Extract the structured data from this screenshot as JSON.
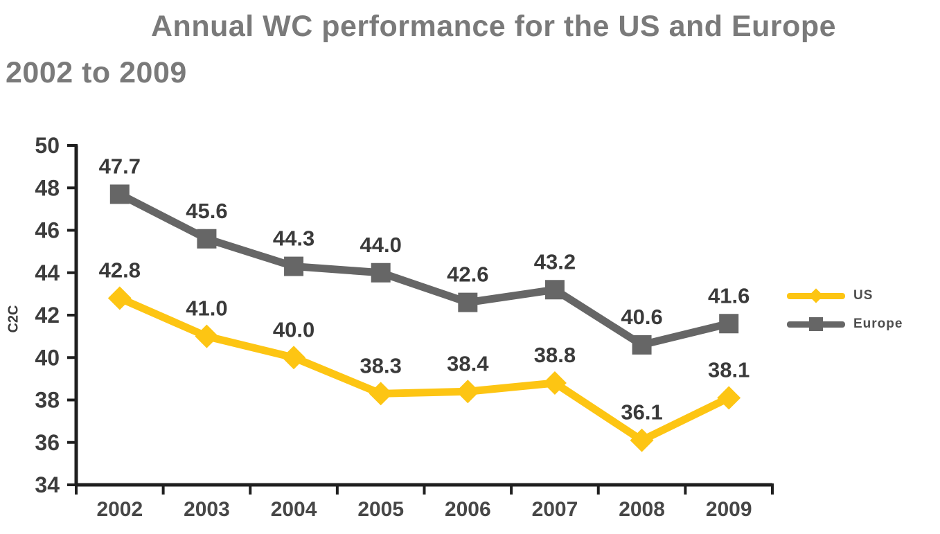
{
  "header": {
    "title_line1": "Annual WC performance for the US and Europe",
    "title_line2": "2002 to 2009"
  },
  "chart_data": {
    "type": "line",
    "title": "Annual WC performance for the US and Europe 2002 to 2009",
    "categories": [
      "2002",
      "2003",
      "2004",
      "2005",
      "2006",
      "2007",
      "2008",
      "2009"
    ],
    "series": [
      {
        "name": "US",
        "color": "#FDC513",
        "marker": "diamond",
        "values": [
          42.8,
          41.0,
          40.0,
          38.3,
          38.4,
          38.8,
          36.1,
          38.1
        ]
      },
      {
        "name": "Europe",
        "color": "#666666",
        "marker": "square",
        "values": [
          47.7,
          45.6,
          44.3,
          44.0,
          42.6,
          43.2,
          40.6,
          41.6
        ]
      }
    ],
    "xlabel": "",
    "ylabel": "C2C",
    "ylim": [
      34,
      50
    ],
    "ytick_step": 2,
    "grid": false,
    "data_labels": true,
    "legend_position": "right"
  },
  "colors": {
    "background": "#ffffff",
    "axis": "#1f1f1f",
    "tick_text": "#3d3d3d",
    "year_text": "#474747",
    "data_label_text": "#3a3a3a",
    "title_text": "#7a7a7a",
    "legend_text": "#4d4d4d",
    "us_accent": "#FDC513",
    "europe_accent": "#666666"
  }
}
